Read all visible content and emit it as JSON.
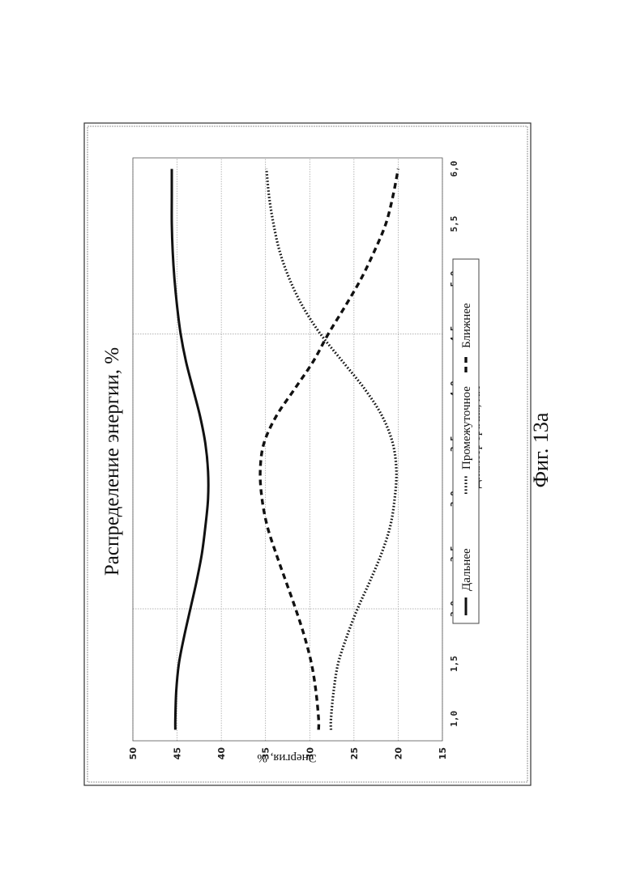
{
  "figure": {
    "caption": "Фиг. 13а"
  },
  "chart_data": {
    "type": "line",
    "title": "Распределение энергии, %",
    "xlabel": "Диаметр зрачка, мм",
    "ylabel": "Энергия, %",
    "xlim": [
      0.8,
      6.1
    ],
    "ylim": [
      15,
      50
    ],
    "x_ticks": [
      "1,0",
      "1,5",
      "2,0",
      "2,5",
      "3,0",
      "3,5",
      "4,0",
      "4,5",
      "5,0",
      "5,5",
      "6,0"
    ],
    "y_ticks": [
      "15",
      "20",
      "25",
      "30",
      "35",
      "40",
      "45",
      "50"
    ],
    "grid": true,
    "legend_position": "bottom",
    "x": [
      0.9,
      1.0,
      1.25,
      1.5,
      1.75,
      2.0,
      2.25,
      2.5,
      2.75,
      3.0,
      3.25,
      3.5,
      3.75,
      4.0,
      4.25,
      4.5,
      4.75,
      5.0,
      5.25,
      5.5,
      5.75,
      6.0
    ],
    "series": [
      {
        "name": "Дальнее",
        "style": "solid",
        "values": [
          45.2,
          45.2,
          45.1,
          44.8,
          44.2,
          43.5,
          42.8,
          42.2,
          41.8,
          41.5,
          41.5,
          41.8,
          42.4,
          43.2,
          44.0,
          44.6,
          45.0,
          45.3,
          45.5,
          45.6,
          45.6,
          45.6
        ]
      },
      {
        "name": "Промежуточное",
        "style": "dotted",
        "values": [
          27.6,
          27.6,
          27.3,
          26.8,
          25.8,
          24.6,
          23.2,
          21.9,
          20.9,
          20.4,
          20.2,
          20.6,
          21.8,
          23.8,
          26.3,
          28.8,
          30.8,
          32.3,
          33.4,
          34.1,
          34.6,
          34.9
        ]
      },
      {
        "name": "Ближнее",
        "style": "dashed",
        "values": [
          29.0,
          29.0,
          29.3,
          29.8,
          30.6,
          31.6,
          32.7,
          33.8,
          34.8,
          35.4,
          35.6,
          35.2,
          33.8,
          31.7,
          29.6,
          27.9,
          26.0,
          24.2,
          22.7,
          21.4,
          20.6,
          20.0
        ]
      }
    ]
  }
}
